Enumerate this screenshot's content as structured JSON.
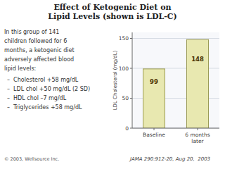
{
  "chart_data": {
    "type": "bar",
    "title": "Effect of Ketogenic Diet on\nLipid Levels (shown is LDL-C)",
    "categories": [
      "Baseline",
      "6 months\nlater"
    ],
    "values": [
      99,
      148
    ],
    "color": "#e8e8b0",
    "y_label": "LDL Cholesterol (mg/dL)",
    "ylim": [
      0,
      160
    ],
    "yticks": [
      0,
      50,
      100,
      150
    ],
    "grid": true,
    "data_labels": true,
    "annotations": [
      "In this group of 141",
      "children followed for 6",
      "months, a ketogenic diet",
      "adversely affected blood",
      "lipid levels:",
      "–  Cholesterol +58 mg/dL",
      "–  LDL chol +50 mg/dL (2 SD)",
      "–  HDL chol –7 mg/dL",
      "–  Triglycerides +58 mg/dL",
      "© 2003, Wellsource Inc.",
      "JAMA 290:912-20, Aug 20,  2003"
    ]
  }
}
